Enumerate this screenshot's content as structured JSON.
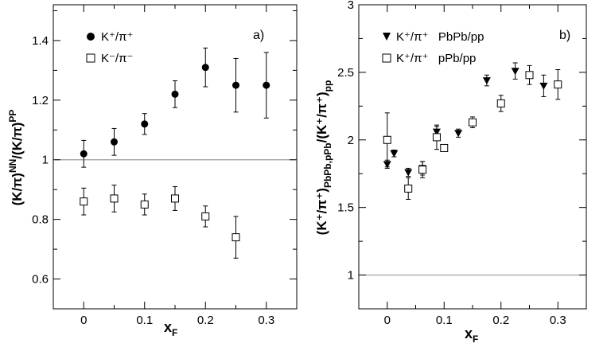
{
  "chart_data": [
    {
      "type": "scatter",
      "panel_label": "a)",
      "xlabel": "x",
      "xlabel_sub": "F",
      "ylabel": "(K/π)",
      "ylabel_sup1": "NN",
      "ylabel_mid": "/(K/π)",
      "ylabel_sup2": "PP",
      "xlim": [
        -0.05,
        0.35
      ],
      "ylim": [
        0.5,
        1.52
      ],
      "xticks": [
        0,
        0.1,
        0.2,
        0.3
      ],
      "xtick_labels": [
        "0",
        "0.1",
        "0.2",
        "0.3"
      ],
      "yticks": [
        0.6,
        0.8,
        1.0,
        1.2,
        1.4
      ],
      "ytick_labels": [
        "0.6",
        "0.8",
        "1",
        "1.2",
        "1.4"
      ],
      "reference_line": 1.0,
      "legend_position": "top-left",
      "series": [
        {
          "name": "K⁺/π⁺",
          "marker": "filled-circle",
          "x": [
            0,
            0.05,
            0.1,
            0.15,
            0.2,
            0.25,
            0.3
          ],
          "y": [
            1.02,
            1.06,
            1.12,
            1.22,
            1.31,
            1.25,
            1.25
          ],
          "err": [
            0.045,
            0.045,
            0.035,
            0.045,
            0.065,
            0.09,
            0.11
          ]
        },
        {
          "name": "K⁻/π⁻",
          "marker": "open-square",
          "x": [
            0,
            0.05,
            0.1,
            0.15,
            0.2,
            0.25
          ],
          "y": [
            0.86,
            0.87,
            0.85,
            0.87,
            0.81,
            0.74
          ],
          "err": [
            0.045,
            0.045,
            0.035,
            0.04,
            0.035,
            0.07
          ]
        }
      ]
    },
    {
      "type": "scatter",
      "panel_label": "b)",
      "xlabel": "x",
      "xlabel_sub": "F",
      "ylabel": "(K⁺/π⁺)",
      "ylabel_sub1": "PbPb,pPb",
      "ylabel_mid": "/(K⁺/π⁺)",
      "ylabel_sub2": "pp",
      "xlim": [
        -0.05,
        0.35
      ],
      "ylim": [
        0.75,
        3.0
      ],
      "xticks": [
        0,
        0.1,
        0.2,
        0.3
      ],
      "xtick_labels": [
        "0",
        "0.1",
        "0.2",
        "0.3"
      ],
      "yticks": [
        1.0,
        1.5,
        2.0,
        2.5,
        3.0
      ],
      "ytick_labels": [
        "1",
        "1.5",
        "2",
        "2.5",
        "3"
      ],
      "reference_line": 1.0,
      "legend_position": "top-left",
      "series": [
        {
          "name": "K⁺/π⁺   PbPb/pp",
          "marker": "filled-triangle-down",
          "x": [
            0,
            0.012,
            0.037,
            0.062,
            0.087,
            0.125,
            0.175,
            0.225,
            0.275
          ],
          "y": [
            1.82,
            1.9,
            1.76,
            1.79,
            2.06,
            2.05,
            2.44,
            2.51,
            2.4
          ],
          "err": [
            0.03,
            0.025,
            0.03,
            0.05,
            0.04,
            0.03,
            0.04,
            0.06,
            0.08
          ]
        },
        {
          "name": "K⁺/π⁺   pPb/pp",
          "marker": "open-square",
          "x": [
            0,
            0.037,
            0.062,
            0.087,
            0.1,
            0.15,
            0.2,
            0.25,
            0.3
          ],
          "y": [
            2.0,
            1.64,
            1.78,
            2.02,
            1.94,
            2.13,
            2.27,
            2.48,
            2.41
          ],
          "err": [
            0.2,
            0.08,
            0.06,
            0.09,
            0.025,
            0.04,
            0.06,
            0.07,
            0.11
          ]
        }
      ]
    }
  ]
}
